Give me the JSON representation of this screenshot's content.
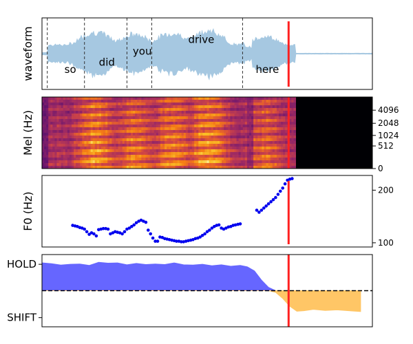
{
  "chart_data": [
    {
      "type": "area",
      "ylabel": "waveform",
      "words": [
        {
          "label": "so",
          "boundary": 0.045,
          "label_x": 0.24,
          "label_y": -0.55
        },
        {
          "label": "did",
          "boundary": 0.36,
          "label_x": 0.55,
          "label_y": -0.3
        },
        {
          "label": "you",
          "boundary": 0.72,
          "label_x": 0.85,
          "label_y": 0.08
        },
        {
          "label": "drive",
          "boundary": 0.93,
          "label_x": 1.35,
          "label_y": 0.5
        },
        {
          "label": "here",
          "boundary": 1.7,
          "label_x": 1.91,
          "label_y": -0.55
        }
      ],
      "xlim": [
        0,
        2.8
      ],
      "ylim": [
        -1,
        1
      ],
      "current_time": 2.09,
      "colors": {
        "waveform": "#a6c8e1",
        "boundaries": "#333333",
        "cursor": "#ff2020"
      }
    },
    {
      "type": "heatmap",
      "ylabel": "Mel (Hz)",
      "yticks": [
        0,
        512,
        1024,
        2048,
        4096
      ],
      "ytick_labels": [
        "0",
        "512",
        "1024",
        "2048",
        "4096"
      ],
      "speech_end": 2.15,
      "current_time": 2.09,
      "colors": {
        "low": "#000004",
        "mid": "#b73779",
        "high": "#fcfdbf"
      }
    },
    {
      "type": "scatter",
      "ylabel": "F0 (Hz)",
      "yticks": [
        100,
        200
      ],
      "ytick_labels": [
        "100",
        "200"
      ],
      "ylim": [
        92,
        228
      ],
      "x": [
        0.26,
        0.28,
        0.3,
        0.32,
        0.34,
        0.36,
        0.38,
        0.4,
        0.42,
        0.44,
        0.46,
        0.48,
        0.5,
        0.52,
        0.54,
        0.56,
        0.58,
        0.6,
        0.62,
        0.64,
        0.66,
        0.68,
        0.7,
        0.72,
        0.74,
        0.76,
        0.78,
        0.8,
        0.82,
        0.84,
        0.86,
        0.88,
        0.9,
        0.92,
        0.94,
        0.96,
        0.98,
        1.0,
        1.02,
        1.04,
        1.06,
        1.08,
        1.1,
        1.12,
        1.14,
        1.16,
        1.18,
        1.2,
        1.22,
        1.24,
        1.26,
        1.28,
        1.3,
        1.32,
        1.34,
        1.36,
        1.38,
        1.4,
        1.42,
        1.44,
        1.46,
        1.48,
        1.5,
        1.52,
        1.54,
        1.56,
        1.58,
        1.6,
        1.62,
        1.64,
        1.66,
        1.68,
        1.82,
        1.84,
        1.86,
        1.88,
        1.9,
        1.92,
        1.94,
        1.96,
        1.98,
        2.0,
        2.02,
        2.04,
        2.06,
        2.08,
        2.1,
        2.12
      ],
      "y": [
        133,
        132,
        131,
        129,
        128,
        126,
        121,
        116,
        119,
        117,
        113,
        125,
        126,
        127,
        127,
        126,
        117,
        119,
        121,
        120,
        119,
        117,
        121,
        126,
        128,
        131,
        134,
        138,
        141,
        143,
        141,
        139,
        124,
        117,
        109,
        103,
        103,
        111,
        110,
        108,
        107,
        106,
        105,
        104,
        103,
        103,
        102,
        102,
        103,
        104,
        105,
        106,
        108,
        109,
        111,
        114,
        117,
        121,
        124,
        128,
        131,
        133,
        134,
        128,
        126,
        128,
        130,
        131,
        133,
        134,
        135,
        136,
        162,
        158,
        162,
        166,
        170,
        174,
        178,
        182,
        186,
        192,
        198,
        204,
        212,
        219,
        221,
        222
      ],
      "current_time": 2.09,
      "colors": {
        "points": "#0000ee",
        "cursor": "#ff2020"
      }
    },
    {
      "type": "area",
      "yticks": [
        "HOLD",
        "SHIFT"
      ],
      "ylim": [
        -1.3,
        1.3
      ],
      "x": [
        0.0,
        0.08,
        0.16,
        0.24,
        0.32,
        0.4,
        0.48,
        0.56,
        0.64,
        0.72,
        0.8,
        0.88,
        0.96,
        1.04,
        1.12,
        1.2,
        1.28,
        1.36,
        1.44,
        1.52,
        1.6,
        1.68,
        1.74,
        1.8,
        1.86,
        1.92,
        1.98,
        2.04,
        2.1,
        2.16,
        2.22,
        2.3,
        2.4,
        2.5,
        2.6,
        2.7
      ],
      "y": [
        1.0,
        0.97,
        0.92,
        0.95,
        0.96,
        0.91,
        1.02,
        0.99,
        1.0,
        0.93,
        0.98,
        0.94,
        0.96,
        0.94,
        1.0,
        0.93,
        0.92,
        0.95,
        0.9,
        0.93,
        0.88,
        0.91,
        0.86,
        0.71,
        0.38,
        0.12,
        -0.06,
        -0.28,
        -0.56,
        -0.74,
        -0.72,
        -0.67,
        -0.71,
        -0.69,
        -0.72,
        -0.75
      ],
      "current_time": 2.09,
      "colors": {
        "hold": "#6666ff",
        "shift": "#ffc666",
        "threshold": "#000000",
        "cursor": "#ff2020"
      }
    }
  ]
}
